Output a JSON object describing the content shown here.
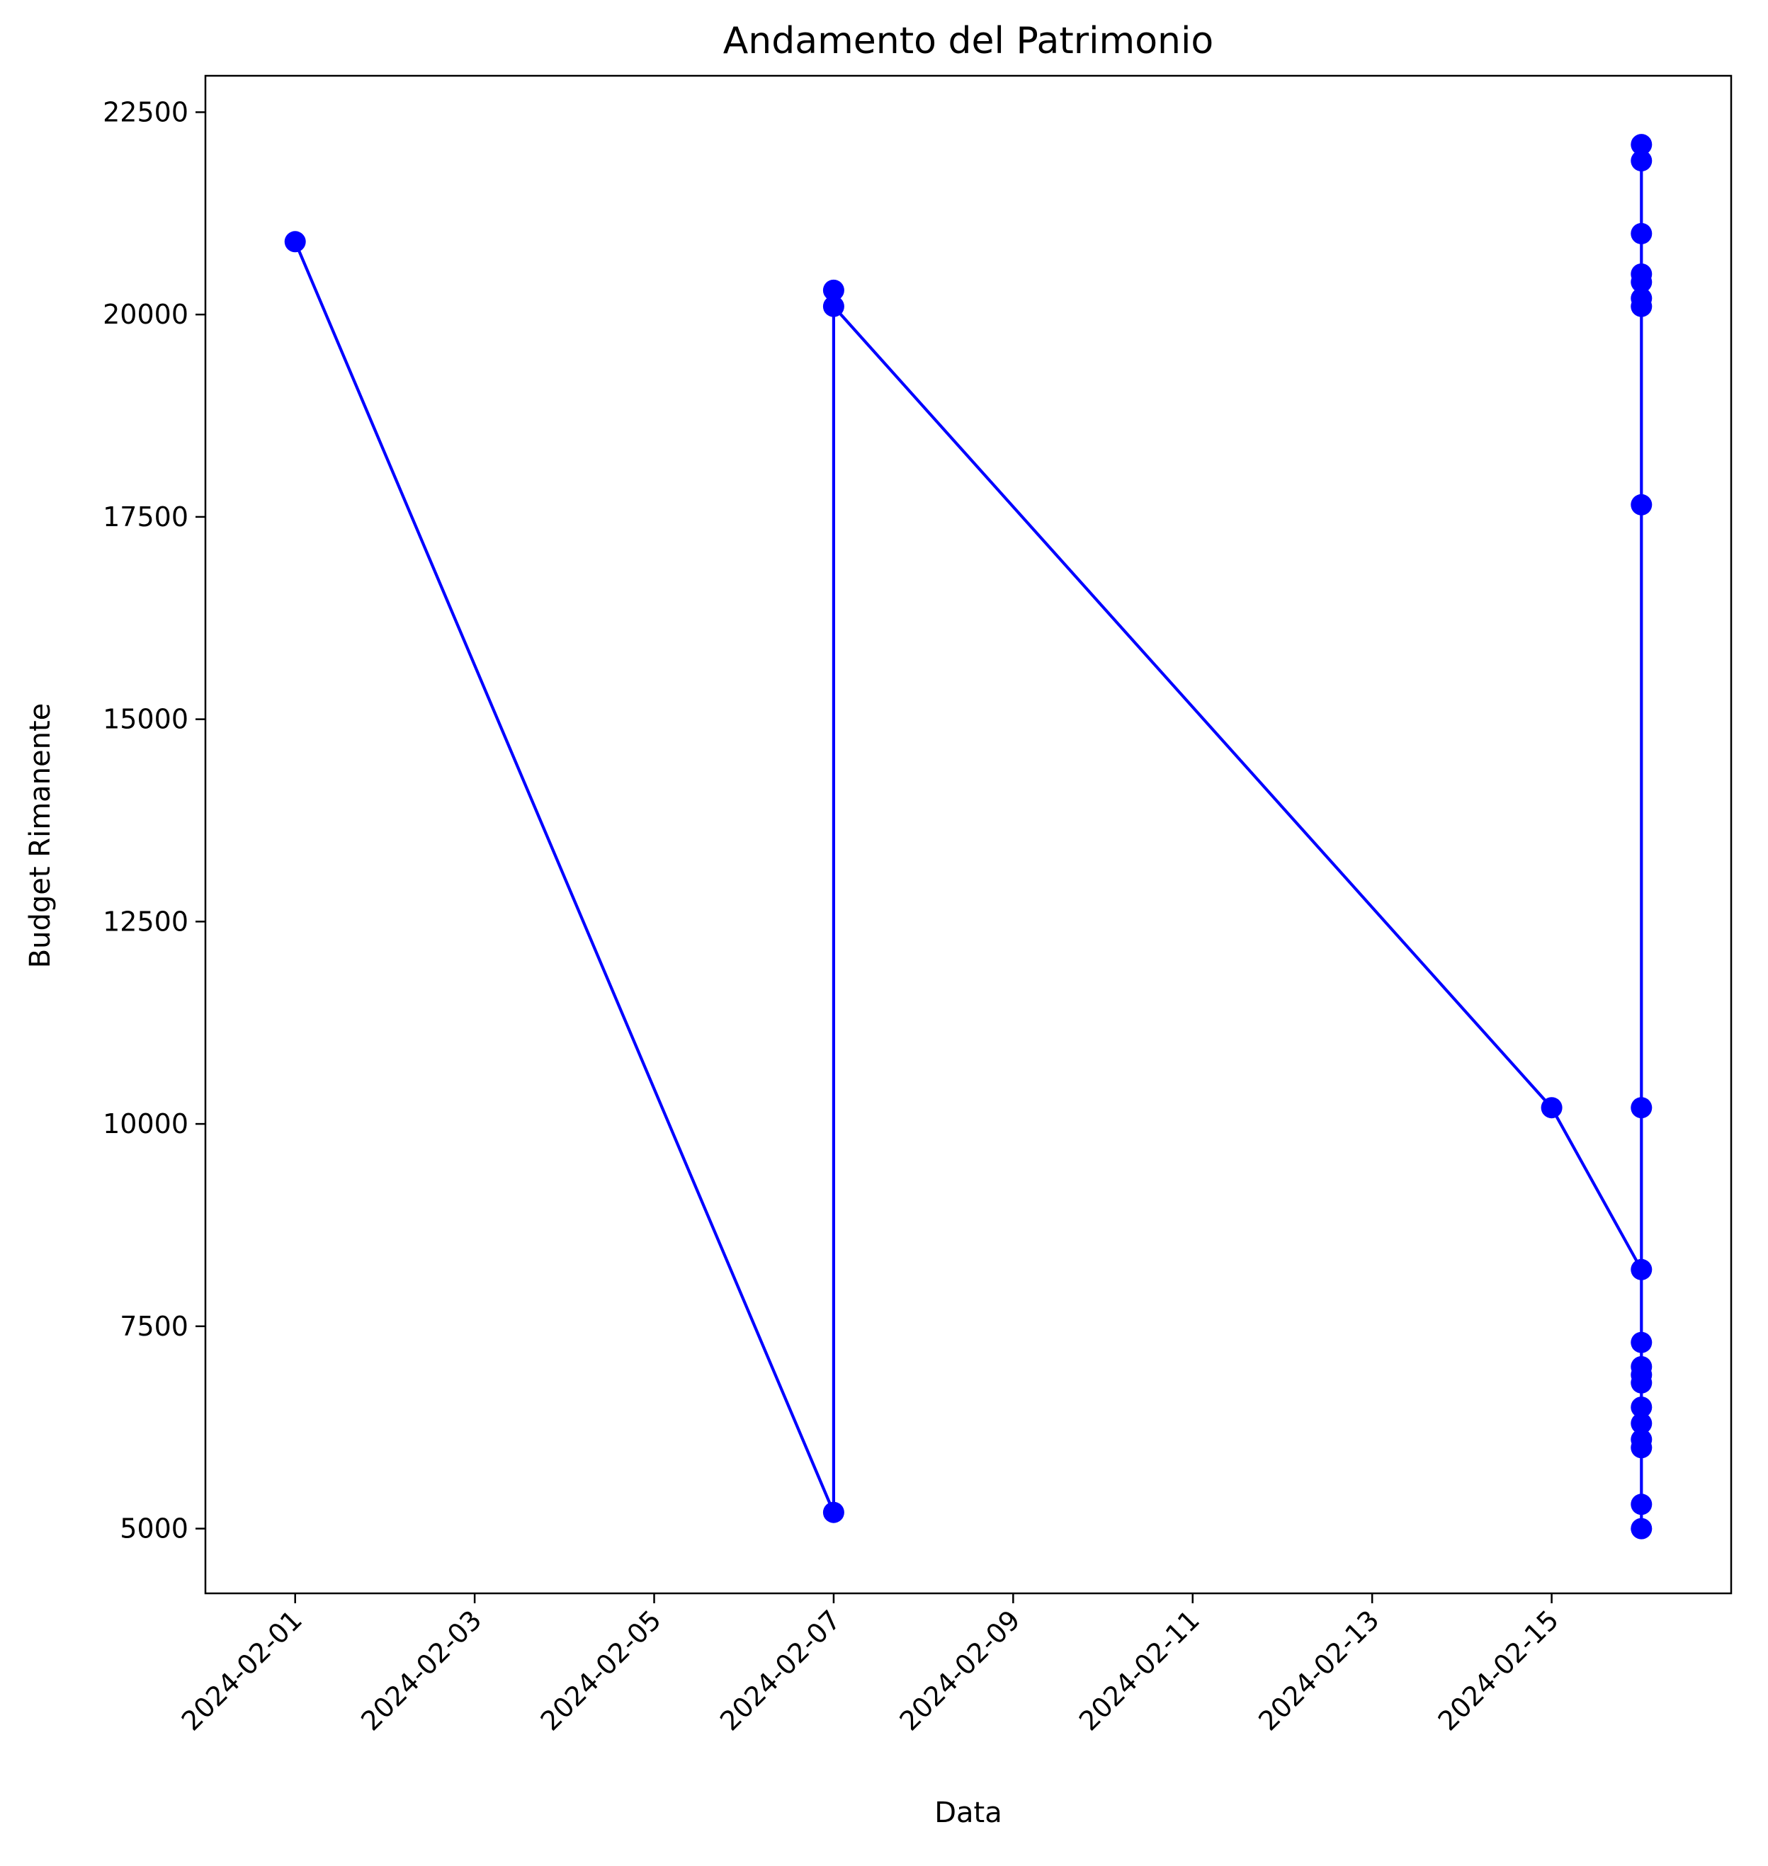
{
  "chart_data": {
    "type": "line",
    "title": "Andamento del Patrimonio",
    "xlabel": "Data",
    "ylabel": "Budget Rimanente",
    "xlim": [
      "2024-01-31",
      "2024-02-17"
    ],
    "ylim": [
      4200,
      22950
    ],
    "x_ticks": [
      "2024-02-01",
      "2024-02-03",
      "2024-02-05",
      "2024-02-07",
      "2024-02-09",
      "2024-02-11",
      "2024-02-13",
      "2024-02-15"
    ],
    "y_ticks": [
      5000,
      7500,
      10000,
      12500,
      15000,
      17500,
      20000,
      22500
    ],
    "grid": false,
    "series": [
      {
        "color": "#0000ff",
        "marker": "circle",
        "points": [
          {
            "x": "2024-02-01",
            "y": 20900
          },
          {
            "x": "2024-02-07",
            "y": 5200
          },
          {
            "x": "2024-02-07",
            "y": 20300
          },
          {
            "x": "2024-02-07",
            "y": 20100
          },
          {
            "x": "2024-02-15",
            "y": 10200
          },
          {
            "x": "2024-02-16",
            "y": 8200
          },
          {
            "x": "2024-02-16",
            "y": 5000
          },
          {
            "x": "2024-02-16",
            "y": 5300
          },
          {
            "x": "2024-02-16",
            "y": 6000
          },
          {
            "x": "2024-02-16",
            "y": 6100
          },
          {
            "x": "2024-02-16",
            "y": 6300
          },
          {
            "x": "2024-02-16",
            "y": 6500
          },
          {
            "x": "2024-02-16",
            "y": 6800
          },
          {
            "x": "2024-02-16",
            "y": 6900
          },
          {
            "x": "2024-02-16",
            "y": 7000
          },
          {
            "x": "2024-02-16",
            "y": 7300
          },
          {
            "x": "2024-02-16",
            "y": 10200
          },
          {
            "x": "2024-02-16",
            "y": 17650
          },
          {
            "x": "2024-02-16",
            "y": 20100
          },
          {
            "x": "2024-02-16",
            "y": 20200
          },
          {
            "x": "2024-02-16",
            "y": 20400
          },
          {
            "x": "2024-02-16",
            "y": 20500
          },
          {
            "x": "2024-02-16",
            "y": 21000
          },
          {
            "x": "2024-02-16",
            "y": 21900
          },
          {
            "x": "2024-02-16",
            "y": 22100
          }
        ]
      }
    ]
  }
}
